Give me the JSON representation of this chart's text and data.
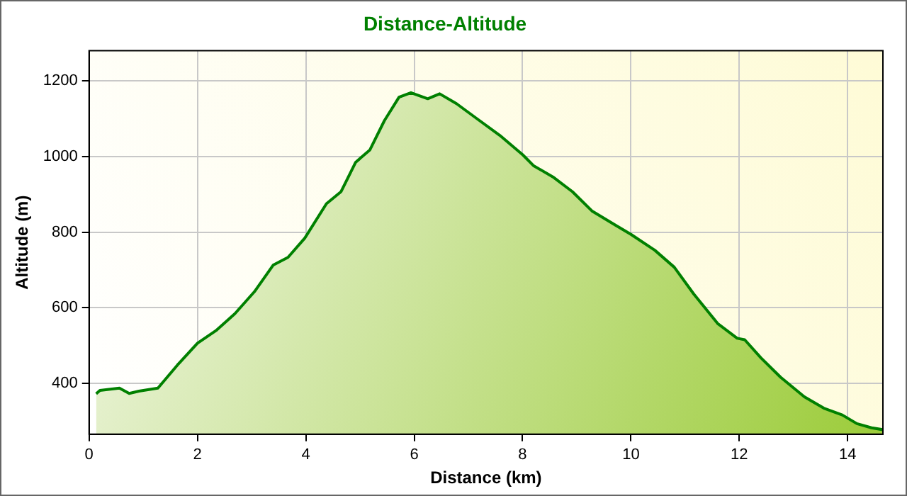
{
  "chart_data": {
    "type": "area",
    "title": "Distance-Altitude",
    "xlabel": "Distance (km)",
    "ylabel": "Altitude (m)",
    "x": [
      0.13,
      0.2,
      0.56,
      0.74,
      0.92,
      1.27,
      1.63,
      2.0,
      2.34,
      2.69,
      3.05,
      3.4,
      3.67,
      3.98,
      4.38,
      4.65,
      4.92,
      5.18,
      5.45,
      5.72,
      5.94,
      6.25,
      6.47,
      6.78,
      7.14,
      7.58,
      8.0,
      8.2,
      8.56,
      8.92,
      9.28,
      9.73,
      10.0,
      10.44,
      10.8,
      11.16,
      11.6,
      11.96,
      12.1,
      12.4,
      12.76,
      13.2,
      13.56,
      13.9,
      14.17,
      14.44,
      14.65
    ],
    "series": [
      {
        "color": "#008000",
        "values": [
          372,
          381,
          387,
          373,
          379,
          387,
          448,
          506,
          539,
          584,
          642,
          713,
          733,
          784,
          875,
          907,
          985,
          1017,
          1095,
          1157,
          1169,
          1153,
          1166,
          1140,
          1102,
          1056,
          1005,
          976,
          946,
          907,
          856,
          817,
          794,
          752,
          707,
          636,
          558,
          519,
          515,
          467,
          416,
          364,
          334,
          316,
          293,
          282,
          277
        ]
      }
    ],
    "xlim": [
      0,
      14.65
    ],
    "xticks": [
      0,
      2,
      4,
      6,
      8,
      10,
      12,
      14
    ],
    "ylim": [
      265,
      1280
    ],
    "yticks": [
      400,
      600,
      800,
      1000,
      1200
    ],
    "grid": true,
    "legend": false,
    "marker": "none",
    "line_style": "solid"
  }
}
